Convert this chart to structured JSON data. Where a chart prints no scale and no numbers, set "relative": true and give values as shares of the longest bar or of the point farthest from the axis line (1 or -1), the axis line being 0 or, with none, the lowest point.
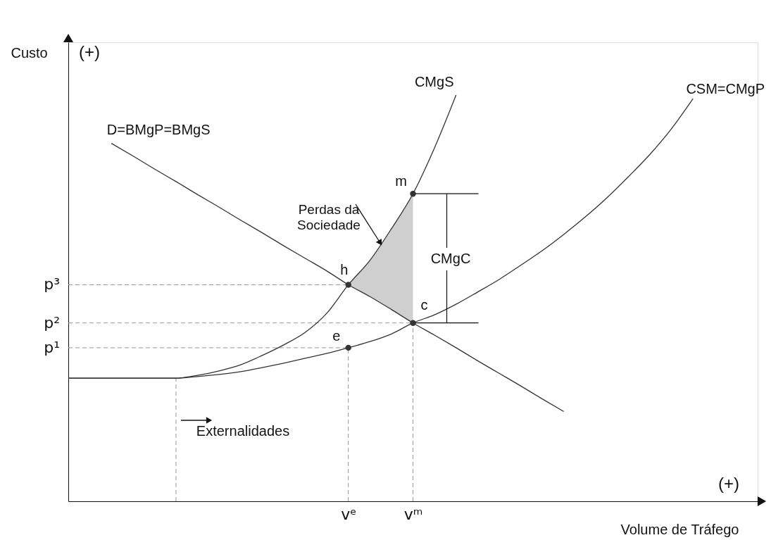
{
  "chart_data": {
    "type": "line",
    "relative": true,
    "xlabel": "Volume de Tráfego",
    "ylabel": "Custo",
    "categories": [
      null,
      null,
      null,
      null,
      null,
      null,
      null,
      null,
      null,
      null,
      null,
      null,
      null,
      "vᵉ",
      null,
      null,
      "vᵐ",
      null,
      null,
      null,
      null,
      null,
      null,
      null,
      null,
      null,
      null,
      null,
      null,
      null,
      null,
      null,
      null
    ],
    "series": [
      {
        "name": "CMgS",
        "color": "#333333",
        "values": [
          0.303,
          0.303,
          0.303,
          0.303,
          0.303,
          0.303,
          0.31,
          0.321,
          0.336,
          0.359,
          0.385,
          0.416,
          0.463,
          0.533,
          0.593,
          0.671,
          0.757,
          0.87,
          1,
          null,
          null,
          null,
          null,
          null,
          null,
          null,
          null,
          null,
          null,
          null,
          null,
          null,
          null
        ]
      },
      {
        "name": "CSM=CMgP",
        "color": "#333333",
        "values": [
          0.303,
          0.303,
          0.303,
          0.303,
          0.303,
          0.303,
          0.307,
          0.312,
          0.319,
          0.329,
          0.34,
          0.352,
          0.364,
          0.378,
          0.393,
          0.412,
          0.439,
          0.459,
          0.485,
          0.515,
          0.546,
          0.581,
          0.617,
          0.657,
          0.7,
          0.747,
          0.799,
          0.854,
          0.917,
          0.991,
          null,
          null,
          null
        ]
      },
      {
        "name": "D=BMgP=BMgS",
        "color": "#333333",
        "values": [
          null,
          null,
          0.881,
          0.85,
          0.818,
          0.787,
          0.755,
          0.724,
          0.692,
          0.661,
          0.629,
          0.598,
          0.567,
          0.533,
          0.504,
          0.472,
          0.439,
          0.409,
          0.378,
          0.346,
          0.315,
          0.284,
          0.252,
          0.221,
          null,
          null,
          null,
          null,
          null,
          null,
          null,
          null,
          null
        ]
      },
      {
        "type": "scatter",
        "color": "#333333",
        "marker": "circle",
        "values": [
          null,
          null,
          null,
          null,
          null,
          null,
          null,
          null,
          null,
          null,
          null,
          null,
          null,
          0.533,
          null,
          null,
          0.757,
          null,
          null,
          null,
          null,
          null,
          null,
          null,
          null,
          null,
          null,
          null,
          null,
          null,
          null,
          null,
          null
        ]
      },
      {
        "type": "scatter",
        "color": "#333333",
        "marker": "circle",
        "values": [
          null,
          null,
          null,
          null,
          null,
          null,
          null,
          null,
          null,
          null,
          null,
          null,
          null,
          0.378,
          null,
          null,
          0.439,
          null,
          null,
          null,
          null,
          null,
          null,
          null,
          null,
          null,
          null,
          null,
          null,
          null,
          null,
          null,
          null
        ]
      }
    ],
    "ref_lines": [
      {
        "axis": "y",
        "value": 0.533,
        "label": "p³",
        "line_style": "dashed",
        "color": "#999999"
      },
      {
        "axis": "y",
        "value": 0.439,
        "label": "p²",
        "line_style": "dashed",
        "color": "#999999"
      },
      {
        "axis": "y",
        "value": 0.378,
        "label": "p¹",
        "line_style": "dashed",
        "color": "#999999"
      }
    ],
    "annotations": [
      {
        "text": "h",
        "x": "vᵉ",
        "y": 0.533
      },
      {
        "text": "m",
        "x": "vᵐ",
        "y": 0.757
      },
      {
        "text": "c",
        "x": "vᵐ",
        "y": 0.439
      },
      {
        "text": "e",
        "x": "vᵉ",
        "y": 0.378
      },
      "(+)",
      "(+)",
      "Externalidades",
      "Perdas da Sociedade",
      "CMgC"
    ]
  }
}
